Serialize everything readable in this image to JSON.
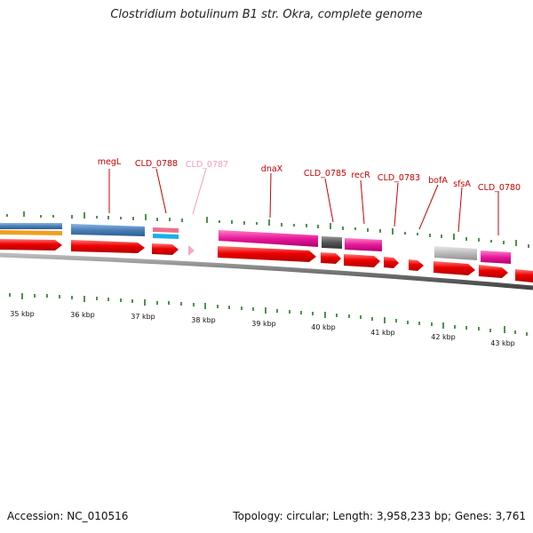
{
  "title": "Clostridium botulinum B1 str. Okra, complete genome",
  "footer": {
    "accession": "Accession: NC_010516",
    "stats": "Topology: circular; Length: 3,958,233 bp; Genes: 3,761"
  },
  "colors": {
    "cds": "#ee0000",
    "label": "#cc0000",
    "label_faint": "#f0a0b8",
    "tick": "#227722",
    "backbone": "#777777",
    "blue_feature": "#4a7fb8",
    "orange_feature": "#f0a020",
    "pink_feature": "#e8189a",
    "dark_feature": "#555555",
    "light_pink_feature": "#ee7088",
    "cyan_feature": "#18b0e8",
    "grey_feature": "#bbbbbb"
  },
  "gene_labels": [
    "megL",
    "CLD_0788",
    "CLD_0787",
    "dnaX",
    "CLD_0785",
    "recR",
    "CLD_0783",
    "bofA",
    "sfsA",
    "CLD_0780"
  ],
  "kbp_labels": [
    "35 kbp",
    "36 kbp",
    "37 kbp",
    "38 kbp",
    "39 kbp",
    "40 kbp",
    "41 kbp",
    "42 kbp",
    "43 kbp"
  ]
}
